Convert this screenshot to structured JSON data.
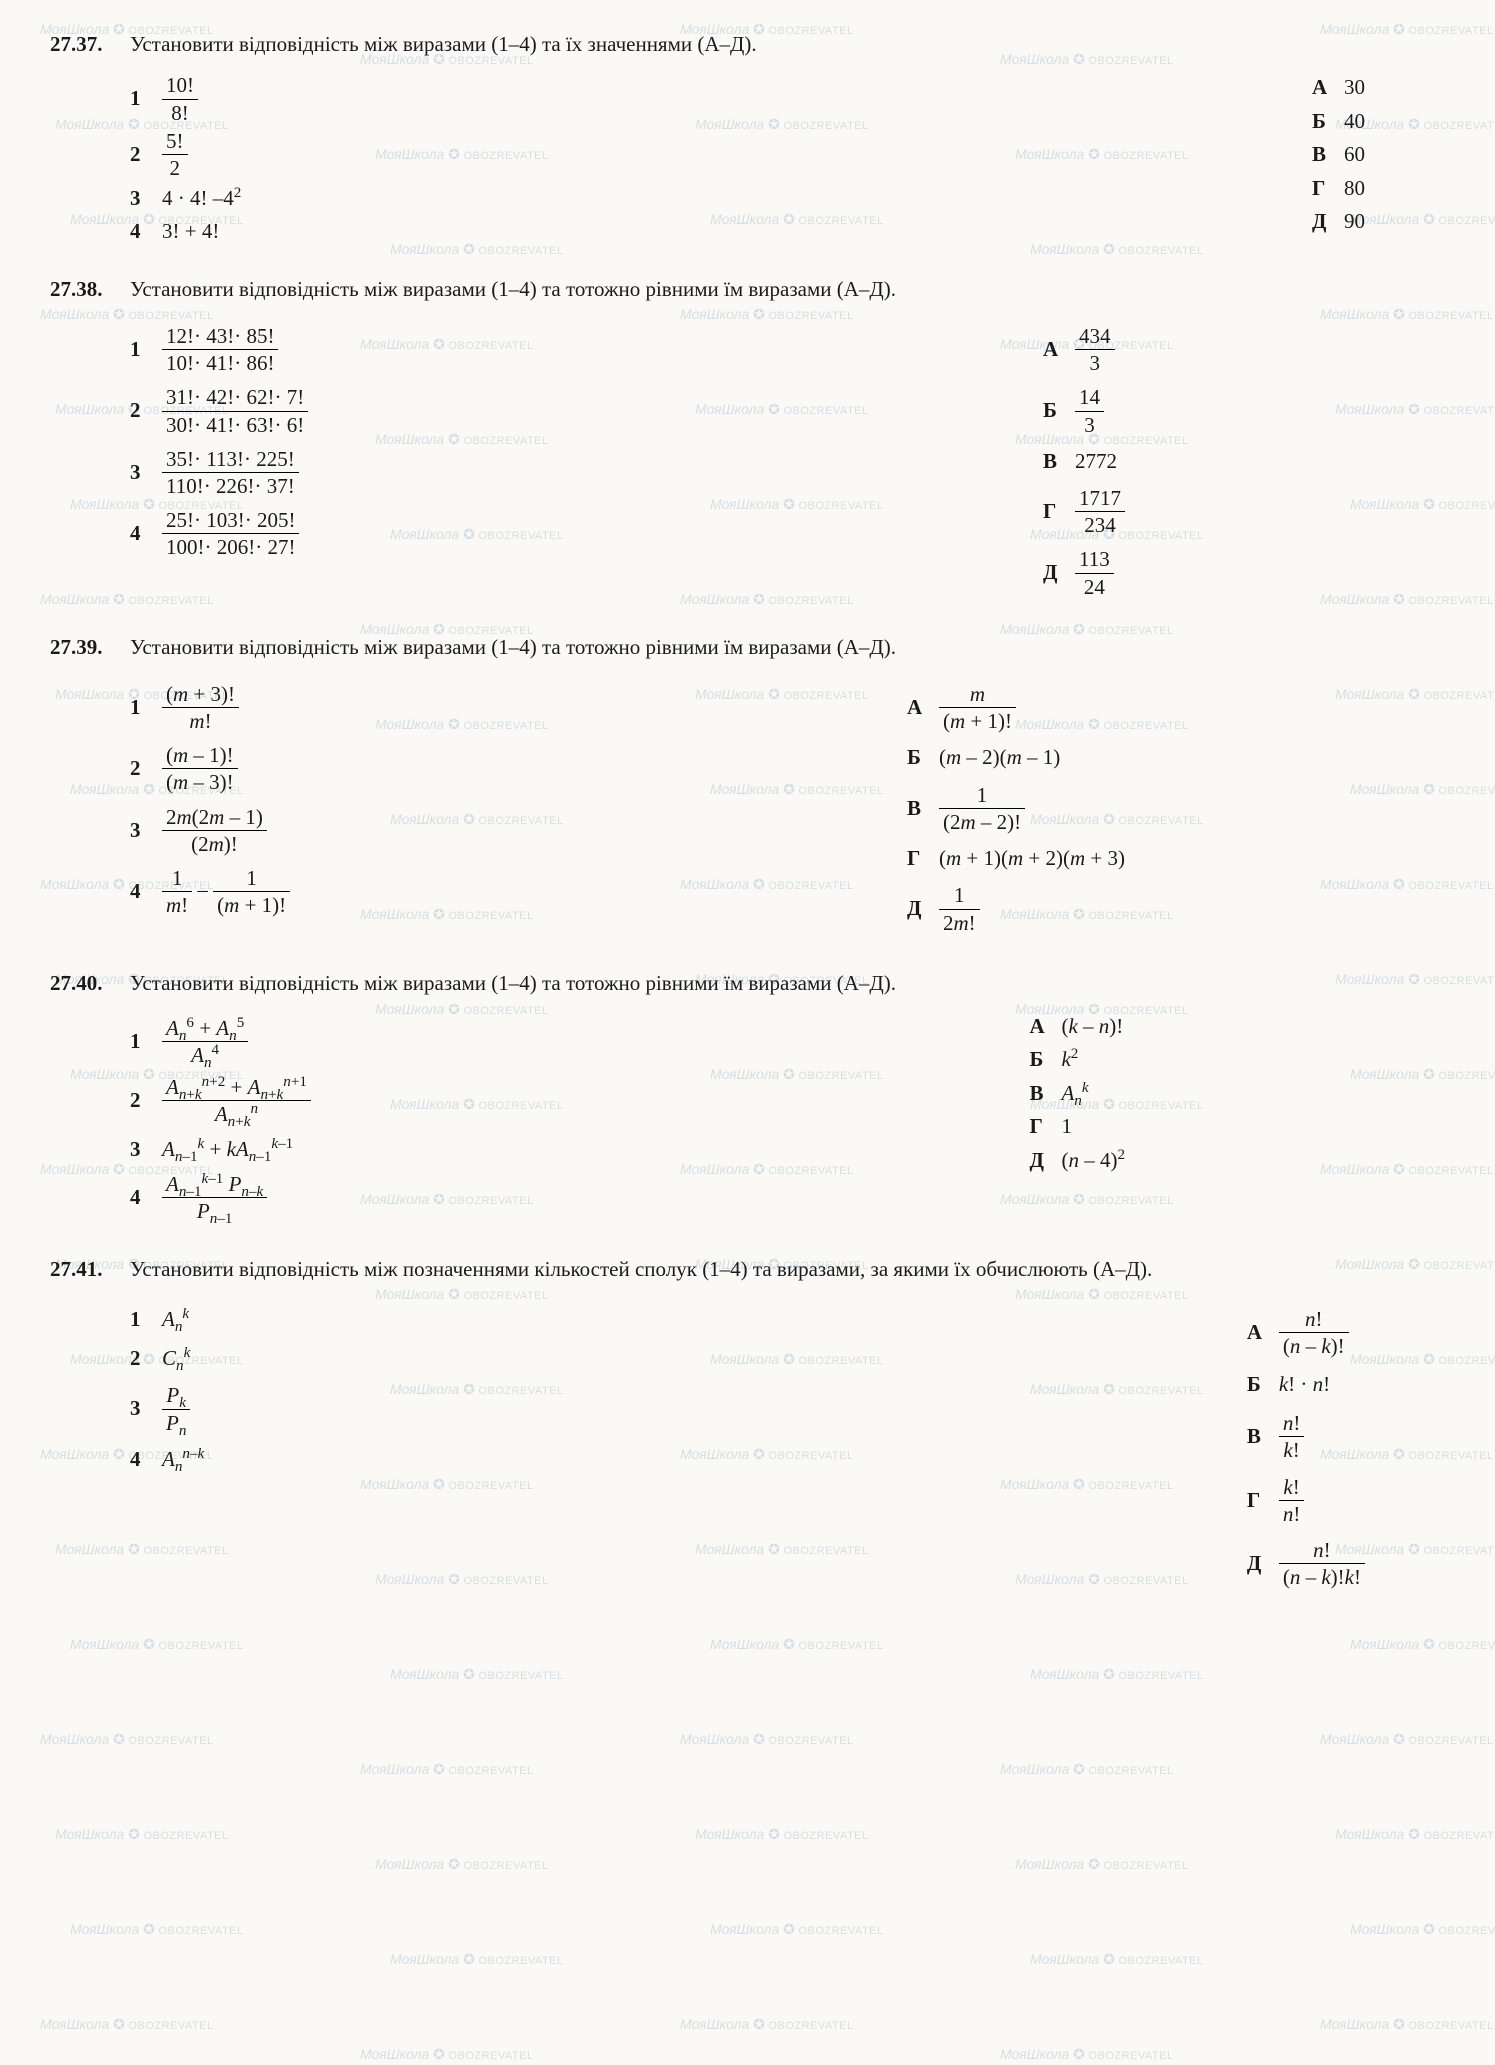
{
  "watermark": "✪",
  "problems": [
    {
      "num": "27.37.",
      "prompt": "Установити відповідність між виразами (1–4) та їх значеннями (А–Д).",
      "left": [
        {
          "k": "1",
          "html": "<span class='frac'><span class='num'>10!</span><span class='den'>8!</span></span>"
        },
        {
          "k": "2",
          "html": "<span class='frac'><span class='num'>5!</span><span class='den'>2</span></span>"
        },
        {
          "k": "3",
          "html": "4 · 4! –4<span class='sup'>2</span>"
        },
        {
          "k": "4",
          "html": "3! + 4!"
        }
      ],
      "right": [
        {
          "k": "А",
          "html": "30"
        },
        {
          "k": "Б",
          "html": "40"
        },
        {
          "k": "В",
          "html": "60"
        },
        {
          "k": "Г",
          "html": "80"
        },
        {
          "k": "Д",
          "html": "90"
        }
      ]
    },
    {
      "num": "27.38.",
      "prompt": "Установити відповідність між виразами (1–4) та тотожно рівними їм виразами (А–Д).",
      "left": [
        {
          "k": "1",
          "html": "<span class='frac'><span class='num'>12!· 43!· 85!</span><span class='den'>10!· 41!· 86!</span></span>"
        },
        {
          "k": "2",
          "html": "<span class='frac'><span class='num'>31!· 42!· 62!· 7!</span><span class='den'>30!· 41!· 63!· 6!</span></span>"
        },
        {
          "k": "3",
          "html": "<span class='frac'><span class='num'>35!· 113!· 225!</span><span class='den'>110!· 226!· 37!</span></span>"
        },
        {
          "k": "4",
          "html": "<span class='frac'><span class='num'>25!· 103!· 205!</span><span class='den'>100!· 206!· 27!</span></span>"
        }
      ],
      "right": [
        {
          "k": "А",
          "html": "<span class='frac'><span class='num'>434</span><span class='den'>3</span></span>"
        },
        {
          "k": "Б",
          "html": "<span class='frac'><span class='num'>14</span><span class='den'>3</span></span>"
        },
        {
          "k": "В",
          "html": "2772"
        },
        {
          "k": "Г",
          "html": "<span class='frac'><span class='num'>1717</span><span class='den'>234</span></span>"
        },
        {
          "k": "Д",
          "html": "<span class='frac'><span class='num'>113</span><span class='den'>24</span></span>"
        }
      ]
    },
    {
      "num": "27.39.",
      "prompt": "Установити відповідність між виразами (1–4) та тотожно рівними їм виразами (А–Д).",
      "left": [
        {
          "k": "1",
          "html": "<span class='frac'><span class='num'>(<span class='it'>m</span> + 3)!</span><span class='den'><span class='it'>m</span>!</span></span>"
        },
        {
          "k": "2",
          "html": "<span class='frac'><span class='num'>(<span class='it'>m</span> – 1)!</span><span class='den'>(<span class='it'>m</span> – 3)!</span></span>"
        },
        {
          "k": "3",
          "html": "<span class='frac'><span class='num'>2<span class='it'>m</span>(2<span class='it'>m</span> – 1)</span><span class='den'>(2<span class='it'>m</span>)!</span></span>"
        },
        {
          "k": "4",
          "html": "<span class='frac'><span class='num'>1</span><span class='den'><span class='it'>m</span>!</span></span> – <span class='frac'><span class='num'>1</span><span class='den'>(<span class='it'>m</span> + 1)!</span></span>"
        }
      ],
      "right": [
        {
          "k": "А",
          "html": "<span class='frac'><span class='num'><span class='it'>m</span></span><span class='den'>(<span class='it'>m</span> + 1)!</span></span>"
        },
        {
          "k": "Б",
          "html": "(<span class='it'>m</span> – 2)(<span class='it'>m</span> – 1)"
        },
        {
          "k": "В",
          "html": "<span class='frac'><span class='num'>1</span><span class='den'>(2<span class='it'>m</span> – 2)!</span></span>"
        },
        {
          "k": "Г",
          "html": "(<span class='it'>m</span> + 1)(<span class='it'>m</span> + 2)(<span class='it'>m</span> + 3)"
        },
        {
          "k": "Д",
          "html": "<span class='frac'><span class='num'>1</span><span class='den'>2<span class='it'>m</span>!</span></span>"
        }
      ]
    },
    {
      "num": "27.40.",
      "prompt": "Установити відповідність між виразами (1–4) та тотожно рівними їм виразами (А–Д).",
      "left": [
        {
          "k": "1",
          "html": "<span class='frac'><span class='num'><span class='it'>A</span><span class='sub'><span class='it'>n</span></span><span class='sup'>6</span> + <span class='it'>A</span><span class='sub'><span class='it'>n</span></span><span class='sup'>5</span></span><span class='den'><span class='it'>A</span><span class='sub'><span class='it'>n</span></span><span class='sup'>4</span></span></span>"
        },
        {
          "k": "2",
          "html": "<span class='frac'><span class='num'><span class='it'>A</span><span class='sub'><span class='it'>n</span>+<span class='it'>k</span></span><span class='sup'><span class='it'>n</span>+2</span> + <span class='it'>A</span><span class='sub'><span class='it'>n</span>+<span class='it'>k</span></span><span class='sup'><span class='it'>n</span>+1</span></span><span class='den'><span class='it'>A</span><span class='sub'><span class='it'>n</span>+<span class='it'>k</span></span><span class='sup'><span class='it'>n</span></span></span></span>"
        },
        {
          "k": "3",
          "html": "<span class='it'>A</span><span class='sub'><span class='it'>n</span>–1</span><span class='sup'><span class='it'>k</span></span> + <span class='it'>k</span><span class='it'>A</span><span class='sub'><span class='it'>n</span>–1</span><span class='sup'><span class='it'>k</span>–1</span>"
        },
        {
          "k": "4",
          "html": "<span class='frac'><span class='num'><span class='it'>A</span><span class='sub'><span class='it'>n</span>–1</span><span class='sup'><span class='it'>k</span>–1</span> <span class='it'>P</span><span class='sub'><span class='it'>n</span>–<span class='it'>k</span></span></span><span class='den'><span class='it'>P</span><span class='sub'><span class='it'>n</span>–1</span></span></span>"
        }
      ],
      "right": [
        {
          "k": "А",
          "html": "(<span class='it'>k</span> – <span class='it'>n</span>)!"
        },
        {
          "k": "Б",
          "html": "<span class='it'>k</span><span class='sup'>2</span>"
        },
        {
          "k": "В",
          "html": "<span class='it'>A</span><span class='sub'><span class='it'>n</span></span><span class='sup'><span class='it'>k</span></span>"
        },
        {
          "k": "Г",
          "html": "1"
        },
        {
          "k": "Д",
          "html": "(<span class='it'>n</span> – 4)<span class='sup'>2</span>"
        }
      ]
    },
    {
      "num": "27.41.",
      "prompt": "Установити відповідність між позначеннями кількостей сполук (1–4) та виразами, за якими їх обчислюють (А–Д).",
      "left": [
        {
          "k": "1",
          "html": "<span class='it'>A</span><span class='sub'><span class='it'>n</span></span><span class='sup'><span class='it'>k</span></span>"
        },
        {
          "k": "2",
          "html": "<span class='it'>C</span><span class='sub'><span class='it'>n</span></span><span class='sup'><span class='it'>k</span></span>"
        },
        {
          "k": "3",
          "html": "<span class='frac'><span class='num'><span class='it'>P</span><span class='sub'><span class='it'>k</span></span></span><span class='den'><span class='it'>P</span><span class='sub'><span class='it'>n</span></span></span></span>"
        },
        {
          "k": "4",
          "html": "<span class='it'>A</span><span class='sub'><span class='it'>n</span></span><span class='sup'><span class='it'>n</span>–<span class='it'>k</span></span>"
        }
      ],
      "right": [
        {
          "k": "А",
          "html": "<span class='frac'><span class='num'><span class='it'>n</span>!</span><span class='den'>(<span class='it'>n</span> – <span class='it'>k</span>)!</span></span>"
        },
        {
          "k": "Б",
          "html": "<span class='it'>k</span>! · <span class='it'>n</span>!"
        },
        {
          "k": "В",
          "html": "<span class='frac'><span class='num'><span class='it'>n</span>!</span><span class='den'><span class='it'>k</span>!</span></span>"
        },
        {
          "k": "Г",
          "html": "<span class='frac'><span class='num'><span class='it'>k</span>!</span><span class='den'><span class='it'>n</span>!</span></span>"
        },
        {
          "k": "Д",
          "html": "<span class='frac'><span class='num'><span class='it'>n</span>!</span><span class='den'>(<span class='it'>n</span> – <span class='it'>k</span>)!<span class='it'>k</span>!</span></span>"
        }
      ]
    }
  ],
  "layout": {
    "leftWidths": [
      "550px",
      "550px",
      "550px",
      "550px",
      "700px"
    ],
    "rightPads": [
      "80px",
      "320px",
      "320px",
      "320px",
      "80px"
    ],
    "gaps": [
      "4px",
      "10px",
      "10px",
      "8px",
      "10px"
    ],
    "rgaps": [
      "4px",
      "10px",
      "10px",
      "4px",
      "12px"
    ]
  }
}
